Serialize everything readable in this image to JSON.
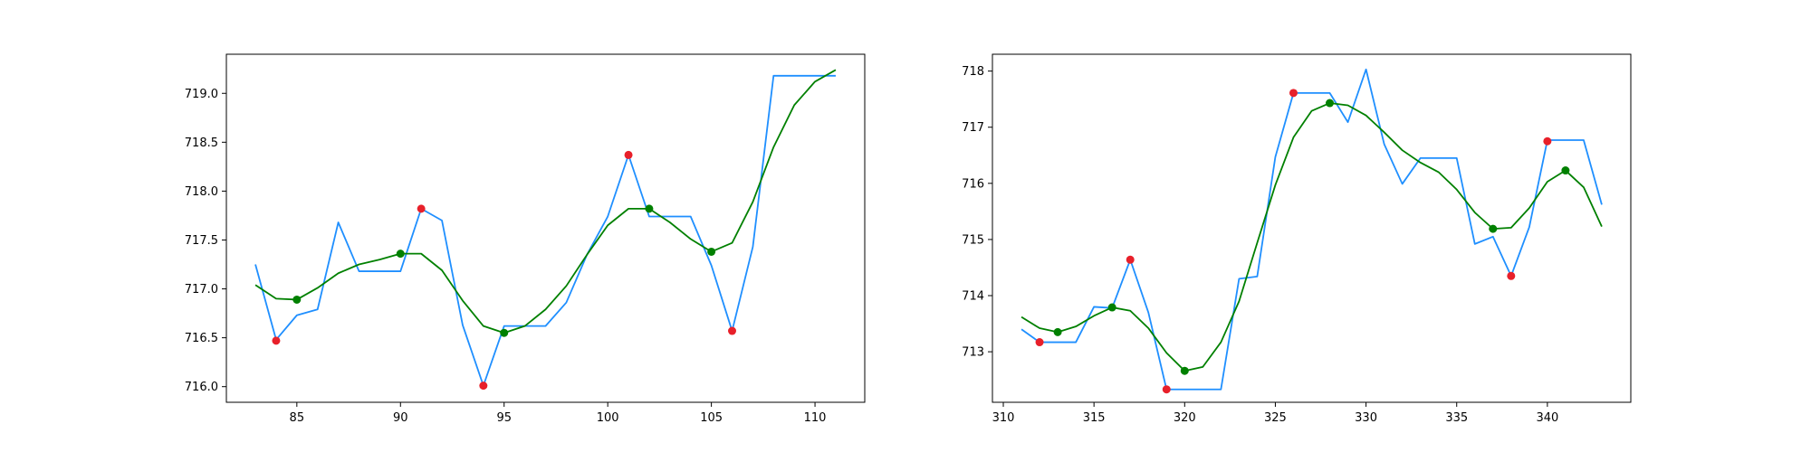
{
  "chart_data": [
    {
      "type": "line",
      "xlim": [
        81.6,
        112.4
      ],
      "ylim": [
        715.84,
        719.4
      ],
      "xticks": [
        85,
        90,
        95,
        100,
        105,
        110
      ],
      "yticks": [
        716.0,
        716.5,
        717.0,
        717.5,
        718.0,
        718.5,
        719.0
      ],
      "xtick_labels": [
        "85",
        "90",
        "95",
        "100",
        "105",
        "110"
      ],
      "ytick_labels": [
        "716.0",
        "716.5",
        "717.0",
        "717.5",
        "718.0",
        "718.5",
        "719.0"
      ],
      "grid": false,
      "series": [
        {
          "style": "line",
          "color": "#1f8fff",
          "x": [
            83,
            84,
            85,
            86,
            87,
            88,
            89,
            90,
            91,
            92,
            93,
            94,
            95,
            96,
            97,
            98,
            99,
            100,
            101,
            102,
            103,
            104,
            105,
            106,
            107,
            108,
            109,
            110,
            111
          ],
          "y": [
            717.25,
            716.48,
            716.73,
            716.79,
            717.68,
            717.18,
            717.18,
            717.18,
            717.82,
            717.7,
            716.63,
            716.01,
            716.62,
            716.62,
            716.62,
            716.86,
            717.35,
            717.74,
            718.37,
            717.74,
            717.74,
            717.74,
            717.24,
            716.57,
            717.43,
            719.18,
            719.18,
            719.18,
            719.18
          ]
        },
        {
          "style": "line",
          "color": "#008000",
          "x": [
            83,
            84,
            85,
            86,
            87,
            88,
            89,
            90,
            91,
            92,
            93,
            94,
            95,
            96,
            97,
            98,
            99,
            100,
            101,
            102,
            103,
            104,
            105,
            106,
            107,
            108,
            109,
            110,
            111
          ],
          "y": [
            717.04,
            716.9,
            716.89,
            717.01,
            717.16,
            717.25,
            717.3,
            717.36,
            717.36,
            717.19,
            716.88,
            716.62,
            716.55,
            716.62,
            716.79,
            717.03,
            717.35,
            717.65,
            717.82,
            717.82,
            717.68,
            717.51,
            717.38,
            717.47,
            717.89,
            718.45,
            718.88,
            719.12,
            719.24
          ]
        },
        {
          "style": "scatter",
          "color": "#e8202a",
          "x": [
            84,
            91,
            94,
            101,
            106
          ],
          "y": [
            716.47,
            717.82,
            716.01,
            718.37,
            716.57
          ]
        },
        {
          "style": "scatter",
          "color": "#008000",
          "x": [
            85,
            90,
            95,
            102,
            105
          ],
          "y": [
            716.89,
            717.36,
            716.55,
            717.82,
            717.38
          ]
        }
      ]
    },
    {
      "type": "line",
      "xlim": [
        309.4,
        344.6
      ],
      "ylim": [
        712.1,
        718.3
      ],
      "xticks": [
        310,
        315,
        320,
        325,
        330,
        335,
        340
      ],
      "yticks": [
        713,
        714,
        715,
        716,
        717,
        718
      ],
      "xtick_labels": [
        "310",
        "315",
        "320",
        "325",
        "330",
        "335",
        "340"
      ],
      "ytick_labels": [
        "713",
        "714",
        "715",
        "716",
        "717",
        "718"
      ],
      "grid": false,
      "series": [
        {
          "style": "line",
          "color": "#1f8fff",
          "x": [
            311,
            312,
            313,
            314,
            315,
            316,
            317,
            318,
            319,
            320,
            321,
            322,
            323,
            324,
            325,
            326,
            327,
            328,
            329,
            330,
            331,
            332,
            333,
            334,
            335,
            336,
            337,
            338,
            339,
            340,
            341,
            342,
            343
          ],
          "y": [
            713.4,
            713.17,
            713.17,
            713.17,
            713.8,
            713.78,
            714.64,
            713.7,
            712.33,
            712.33,
            712.33,
            712.33,
            714.3,
            714.34,
            716.47,
            717.61,
            717.61,
            717.61,
            717.09,
            718.03,
            716.7,
            715.99,
            716.45,
            716.45,
            716.45,
            714.92,
            715.05,
            714.35,
            715.22,
            716.77,
            716.77,
            716.77,
            715.62
          ]
        },
        {
          "style": "line",
          "color": "#008000",
          "x": [
            311,
            312,
            313,
            314,
            315,
            316,
            317,
            318,
            319,
            320,
            321,
            322,
            323,
            324,
            325,
            326,
            327,
            328,
            329,
            330,
            331,
            332,
            333,
            334,
            335,
            336,
            337,
            338,
            339,
            340,
            341,
            342,
            343
          ],
          "y": [
            713.62,
            713.42,
            713.35,
            713.45,
            713.64,
            713.79,
            713.73,
            713.42,
            712.98,
            712.66,
            712.73,
            713.17,
            713.9,
            714.94,
            715.97,
            716.82,
            717.29,
            717.43,
            717.39,
            717.21,
            716.91,
            716.59,
            716.37,
            716.2,
            715.89,
            715.48,
            715.19,
            715.21,
            715.56,
            716.03,
            716.23,
            715.93,
            715.23
          ]
        },
        {
          "style": "scatter",
          "color": "#e8202a",
          "x": [
            312,
            317,
            319,
            326,
            338,
            340
          ],
          "y": [
            713.17,
            714.64,
            712.33,
            717.61,
            714.35,
            716.75
          ]
        },
        {
          "style": "scatter",
          "color": "#008000",
          "x": [
            313,
            316,
            320,
            328,
            337,
            341
          ],
          "y": [
            713.35,
            713.79,
            712.66,
            717.43,
            715.19,
            716.23
          ]
        }
      ]
    }
  ]
}
